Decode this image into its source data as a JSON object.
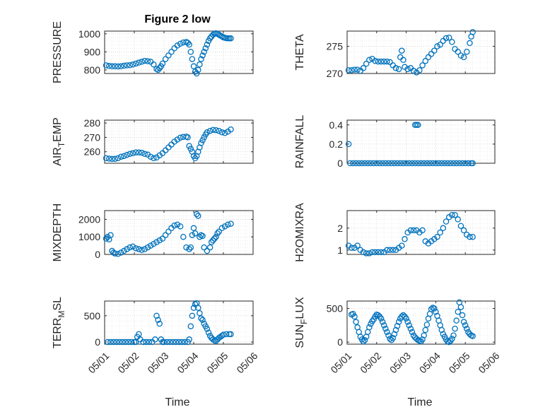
{
  "figure": {
    "title": "Figure 2 low",
    "marker_color": "#0072BD"
  },
  "chart_data": [
    {
      "type": "scatter",
      "ylabel": "PRESSURE",
      "ylim": [
        780,
        1015
      ],
      "yticks": [
        800,
        900,
        1000
      ],
      "xlim": [
        0,
        5
      ],
      "xtick_labels": [],
      "grid": true,
      "x": [
        0.05,
        0.15,
        0.25,
        0.35,
        0.45,
        0.55,
        0.65,
        0.75,
        0.85,
        0.95,
        1.05,
        1.15,
        1.25,
        1.35,
        1.45,
        1.55,
        1.65,
        1.75,
        1.8,
        1.85,
        1.9,
        1.95,
        2.05,
        2.15,
        2.25,
        2.35,
        2.45,
        2.55,
        2.65,
        2.75,
        2.8,
        2.85,
        2.9,
        2.95,
        3.0,
        3.05,
        3.1,
        3.15,
        3.2,
        3.25,
        3.3,
        3.35,
        3.4,
        3.45,
        3.5,
        3.55,
        3.6,
        3.65,
        3.7,
        3.75,
        3.8,
        3.85,
        3.9,
        3.95,
        4.0,
        4.05,
        4.1,
        4.15,
        4.2,
        4.25
      ],
      "y": [
        825,
        822,
        820,
        820,
        819,
        820,
        823,
        825,
        826,
        830,
        835,
        840,
        845,
        850,
        848,
        845,
        830,
        805,
        800,
        810,
        820,
        835,
        860,
        880,
        900,
        920,
        935,
        945,
        952,
        955,
        950,
        940,
        900,
        860,
        820,
        790,
        780,
        800,
        830,
        860,
        880,
        900,
        920,
        940,
        960,
        975,
        985,
        995,
        1000,
        1003,
        1000,
        995,
        990,
        985,
        980,
        978,
        976,
        975,
        975,
        975
      ]
    },
    {
      "type": "scatter",
      "ylabel": "THETA",
      "ylim": [
        270,
        277.8
      ],
      "yticks": [
        270,
        275
      ],
      "xlim": [
        0,
        5
      ],
      "xtick_labels": [],
      "grid": true,
      "x": [
        0.05,
        0.15,
        0.25,
        0.35,
        0.45,
        0.55,
        0.65,
        0.75,
        0.85,
        0.95,
        1.05,
        1.15,
        1.25,
        1.35,
        1.45,
        1.55,
        1.65,
        1.75,
        1.8,
        1.85,
        1.9,
        1.95,
        2.05,
        2.15,
        2.25,
        2.35,
        2.45,
        2.55,
        2.65,
        2.75,
        2.85,
        2.95,
        3.05,
        3.15,
        3.25,
        3.35,
        3.45,
        3.55,
        3.65,
        3.75,
        3.85,
        3.95,
        4.05,
        4.15,
        4.2,
        4.25
      ],
      "y": [
        270.6,
        270.6,
        270.7,
        270.7,
        270.5,
        271.0,
        271.8,
        272.5,
        272.7,
        272.3,
        272.2,
        272.2,
        272.2,
        272.2,
        272.1,
        271.5,
        271.0,
        270.8,
        273.0,
        274.2,
        272.5,
        271.2,
        270.8,
        271.0,
        270.5,
        270.2,
        270.6,
        271.5,
        272.3,
        273.0,
        273.6,
        274.2,
        275.0,
        275.3,
        276.0,
        276.5,
        276.6,
        275.8,
        274.5,
        274.0,
        273.3,
        273.0,
        274.0,
        275.6,
        276.8,
        277.6
      ]
    },
    {
      "type": "scatter",
      "ylabel": "AIR_TEMP",
      "ylim": [
        252,
        282
      ],
      "yticks": [
        260,
        270,
        280
      ],
      "xlim": [
        0,
        5
      ],
      "xtick_labels": [],
      "grid": true,
      "x": [
        0.05,
        0.15,
        0.25,
        0.35,
        0.45,
        0.55,
        0.65,
        0.75,
        0.85,
        0.95,
        1.05,
        1.15,
        1.25,
        1.35,
        1.45,
        1.55,
        1.65,
        1.75,
        1.85,
        1.95,
        2.05,
        2.15,
        2.25,
        2.35,
        2.45,
        2.55,
        2.65,
        2.75,
        2.8,
        2.85,
        2.9,
        2.95,
        3.0,
        3.05,
        3.1,
        3.15,
        3.2,
        3.25,
        3.3,
        3.35,
        3.4,
        3.45,
        3.55,
        3.65,
        3.75,
        3.85,
        3.95,
        4.05,
        4.15,
        4.25
      ],
      "y": [
        255.5,
        255.2,
        255.0,
        255.0,
        255.5,
        256.5,
        257.0,
        257.8,
        258.5,
        259.0,
        259.5,
        259.5,
        259.3,
        258.5,
        258.0,
        256.5,
        255.5,
        256.0,
        257.5,
        259.0,
        261.0,
        263.0,
        265.0,
        267.0,
        268.5,
        269.8,
        270.3,
        270.5,
        270.0,
        264.0,
        262.0,
        260.0,
        257.0,
        255.5,
        257.0,
        260.0,
        263.0,
        266.0,
        268.0,
        270.0,
        272.0,
        273.5,
        274.5,
        275.2,
        275.0,
        274.5,
        273.5,
        273.0,
        274.0,
        275.5
      ]
    },
    {
      "type": "scatter",
      "ylabel": "RAINFALL",
      "ylim": [
        0,
        0.45
      ],
      "yticks": [
        0,
        0.2,
        0.4
      ],
      "xlim": [
        0,
        5
      ],
      "xtick_labels": [],
      "grid": true,
      "x": [
        0.05,
        0.1,
        0.2,
        0.3,
        0.4,
        0.5,
        0.6,
        0.7,
        0.8,
        0.9,
        1.0,
        1.1,
        1.2,
        1.3,
        1.4,
        1.5,
        1.6,
        1.7,
        1.8,
        1.9,
        2.0,
        2.1,
        2.2,
        2.3,
        2.4,
        2.5,
        2.6,
        2.7,
        2.8,
        2.9,
        3.0,
        3.1,
        3.2,
        3.3,
        3.4,
        3.5,
        3.6,
        3.7,
        3.8,
        3.9,
        4.0,
        4.1,
        4.2,
        4.25,
        2.3,
        2.35,
        2.4
      ],
      "y": [
        0.2,
        0,
        0,
        0,
        0,
        0,
        0,
        0,
        0,
        0,
        0,
        0,
        0,
        0,
        0,
        0,
        0,
        0,
        0,
        0,
        0,
        0,
        0,
        0,
        0,
        0,
        0,
        0,
        0,
        0,
        0,
        0,
        0,
        0,
        0,
        0,
        0,
        0,
        0,
        0,
        0,
        0,
        0,
        0,
        0.4,
        0.4,
        0.4
      ]
    },
    {
      "type": "scatter",
      "ylabel": "MIXDEPTH",
      "ylim": [
        0,
        2500
      ],
      "yticks": [
        0,
        1000,
        2000
      ],
      "xlim": [
        0,
        5
      ],
      "xtick_labels": [],
      "grid": true,
      "x": [
        0.05,
        0.1,
        0.15,
        0.2,
        0.25,
        0.3,
        0.35,
        0.45,
        0.55,
        0.65,
        0.75,
        0.85,
        0.95,
        1.05,
        1.15,
        1.25,
        1.35,
        1.45,
        1.55,
        1.65,
        1.75,
        1.85,
        1.95,
        2.05,
        2.15,
        2.25,
        2.35,
        2.45,
        2.55,
        2.65,
        2.75,
        2.85,
        2.9,
        2.95,
        3.0,
        3.05,
        3.1,
        3.15,
        3.2,
        3.25,
        3.3,
        3.35,
        3.45,
        3.55,
        3.6,
        3.65,
        3.7,
        3.75,
        3.8,
        3.85,
        3.95,
        4.05,
        4.15,
        4.25
      ],
      "y": [
        900,
        1000,
        850,
        1100,
        200,
        100,
        50,
        30,
        100,
        200,
        300,
        400,
        450,
        350,
        300,
        250,
        300,
        400,
        500,
        600,
        700,
        800,
        900,
        1100,
        1300,
        1500,
        1650,
        1700,
        1600,
        1000,
        400,
        300,
        400,
        1100,
        1500,
        1200,
        2300,
        2200,
        1000,
        1100,
        1050,
        400,
        200,
        400,
        700,
        800,
        900,
        1000,
        1200,
        1300,
        1500,
        1600,
        1700,
        1750
      ]
    },
    {
      "type": "scatter",
      "ylabel": "H2OMIXRA",
      "ylim": [
        0.8,
        2.8
      ],
      "yticks": [
        1,
        2
      ],
      "xlim": [
        0,
        5
      ],
      "xtick_labels": [],
      "grid": true,
      "x": [
        0.05,
        0.15,
        0.25,
        0.35,
        0.45,
        0.55,
        0.65,
        0.75,
        0.85,
        0.95,
        1.05,
        1.15,
        1.25,
        1.35,
        1.45,
        1.55,
        1.65,
        1.75,
        1.85,
        1.95,
        2.05,
        2.15,
        2.25,
        2.35,
        2.45,
        2.55,
        2.65,
        2.75,
        2.85,
        2.95,
        3.05,
        3.15,
        3.25,
        3.35,
        3.45,
        3.55,
        3.65,
        3.75,
        3.85,
        3.95,
        4.05,
        4.15,
        4.25
      ],
      "y": [
        1.2,
        1.1,
        1.1,
        1.2,
        1.0,
        0.9,
        0.85,
        0.85,
        0.9,
        0.9,
        0.9,
        0.9,
        0.9,
        1.0,
        1.0,
        1.0,
        1.0,
        1.1,
        1.2,
        1.5,
        1.8,
        1.9,
        1.9,
        1.9,
        1.8,
        1.9,
        1.4,
        1.3,
        1.4,
        1.5,
        1.6,
        1.8,
        2.0,
        2.3,
        2.5,
        2.6,
        2.6,
        2.4,
        2.1,
        1.9,
        1.7,
        1.6,
        1.6
      ]
    },
    {
      "type": "scatter",
      "ylabel": "TERR_MSL",
      "ylim": [
        -40,
        780
      ],
      "yticks": [
        0,
        500
      ],
      "xlim": [
        0,
        5
      ],
      "xtick_labels": [
        "05/01",
        "05/02",
        "05/03",
        "05/04",
        "05/05",
        "05/06"
      ],
      "grid": true,
      "x": [
        0.1,
        0.2,
        0.3,
        0.4,
        0.5,
        0.6,
        0.7,
        0.8,
        0.9,
        1.0,
        1.05,
        1.1,
        1.15,
        1.2,
        1.3,
        1.4,
        1.5,
        1.6,
        1.7,
        1.75,
        1.8,
        1.85,
        1.9,
        1.95,
        2.0,
        2.1,
        2.2,
        2.3,
        2.4,
        2.5,
        2.6,
        2.7,
        2.8,
        2.85,
        2.9,
        2.95,
        3.0,
        3.05,
        3.1,
        3.15,
        3.2,
        3.25,
        3.3,
        3.35,
        3.4,
        3.45,
        3.5,
        3.55,
        3.6,
        3.65,
        3.7,
        3.75,
        3.8,
        3.85,
        3.9,
        3.95,
        4.0,
        4.1,
        4.2,
        4.25
      ],
      "y": [
        0,
        0,
        0,
        0,
        0,
        0,
        0,
        0,
        0,
        0,
        0,
        100,
        150,
        50,
        0,
        0,
        0,
        0,
        50,
        500,
        420,
        350,
        50,
        0,
        0,
        0,
        0,
        0,
        0,
        0,
        0,
        0,
        0,
        50,
        300,
        500,
        650,
        720,
        740,
        650,
        550,
        450,
        420,
        350,
        300,
        250,
        180,
        120,
        80,
        50,
        30,
        20,
        50,
        80,
        100,
        120,
        140,
        150,
        150,
        150
      ]
    },
    {
      "type": "scatter",
      "ylabel": "SUN_FLUX",
      "ylim": [
        -30,
        610
      ],
      "yticks": [
        0,
        500
      ],
      "xlim": [
        0,
        5
      ],
      "xtick_labels": [
        "05/01",
        "05/02",
        "05/03",
        "05/04",
        "05/05",
        "05/06"
      ],
      "grid": true,
      "x": [
        0.15,
        0.2,
        0.25,
        0.3,
        0.35,
        0.4,
        0.45,
        0.5,
        0.55,
        0.6,
        0.65,
        0.7,
        0.75,
        0.8,
        0.85,
        0.9,
        0.95,
        1.0,
        1.05,
        1.1,
        1.15,
        1.2,
        1.25,
        1.3,
        1.35,
        1.4,
        1.45,
        1.5,
        1.55,
        1.6,
        1.65,
        1.7,
        1.75,
        1.8,
        1.85,
        1.9,
        1.95,
        2.0,
        2.05,
        2.1,
        2.15,
        2.2,
        2.25,
        2.3,
        2.35,
        2.4,
        2.45,
        2.5,
        2.55,
        2.6,
        2.65,
        2.7,
        2.75,
        2.8,
        2.85,
        2.9,
        2.95,
        3.0,
        3.05,
        3.1,
        3.15,
        3.2,
        3.25,
        3.3,
        3.35,
        3.4,
        3.45,
        3.5,
        3.55,
        3.6,
        3.65,
        3.7,
        3.75,
        3.8,
        3.85,
        3.9,
        3.95,
        4.0,
        4.05,
        4.1,
        4.15,
        4.2,
        4.25
      ],
      "y": [
        410,
        420,
        380,
        300,
        220,
        150,
        80,
        40,
        10,
        30,
        80,
        150,
        220,
        270,
        310,
        340,
        380,
        410,
        400,
        380,
        350,
        300,
        250,
        200,
        150,
        100,
        50,
        30,
        60,
        120,
        180,
        240,
        300,
        350,
        380,
        400,
        380,
        350,
        300,
        250,
        200,
        150,
        100,
        70,
        50,
        30,
        20,
        10,
        40,
        100,
        180,
        260,
        350,
        420,
        490,
        510,
        500,
        450,
        390,
        320,
        250,
        180,
        120,
        80,
        40,
        10,
        0,
        20,
        50,
        100,
        200,
        320,
        450,
        590,
        520,
        400,
        300,
        250,
        200,
        150,
        120,
        100,
        90
      ]
    }
  ]
}
